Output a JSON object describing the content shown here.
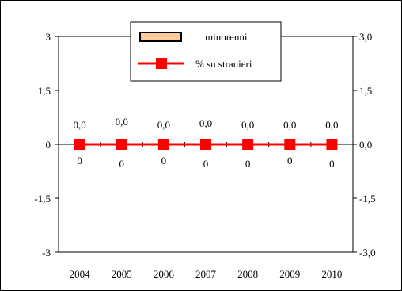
{
  "chart_data": {
    "type": "bar+line",
    "categories": [
      "2004",
      "2005",
      "2006",
      "2007",
      "2008",
      "2009",
      "2010"
    ],
    "series": [
      {
        "name": "minorenni",
        "kind": "bar",
        "axis": "left",
        "values": [
          0,
          0,
          0,
          0,
          0,
          0,
          0
        ],
        "labels": [
          "0",
          "0",
          "0",
          "0",
          "0",
          "0",
          "0"
        ],
        "fill": "#FFCC99",
        "stroke": "#000000"
      },
      {
        "name": "% su stranieri",
        "kind": "line",
        "axis": "right",
        "values": [
          0.0,
          0.0,
          0.0,
          0.0,
          0.0,
          0.0,
          0.0
        ],
        "labels": [
          "0,0",
          "0,0",
          "0,0",
          "0,0",
          "0,0",
          "0,0",
          "0,0"
        ],
        "color": "#FF0000",
        "marker": "square"
      }
    ],
    "y_left": {
      "range": [
        -3,
        3
      ],
      "ticks": [
        3,
        1.5,
        0,
        -1.5,
        -3
      ],
      "tick_labels": [
        "3",
        "1,5",
        "0",
        "-1,5",
        "-3"
      ]
    },
    "y_right": {
      "range": [
        -3,
        3
      ],
      "ticks": [
        3,
        1.5,
        0,
        -1.5,
        -3
      ],
      "tick_labels": [
        "3,0",
        "1,5",
        "0,0",
        "-1,5",
        "-3,0"
      ]
    },
    "grid": false,
    "legend": {
      "placement": "top-center"
    }
  }
}
